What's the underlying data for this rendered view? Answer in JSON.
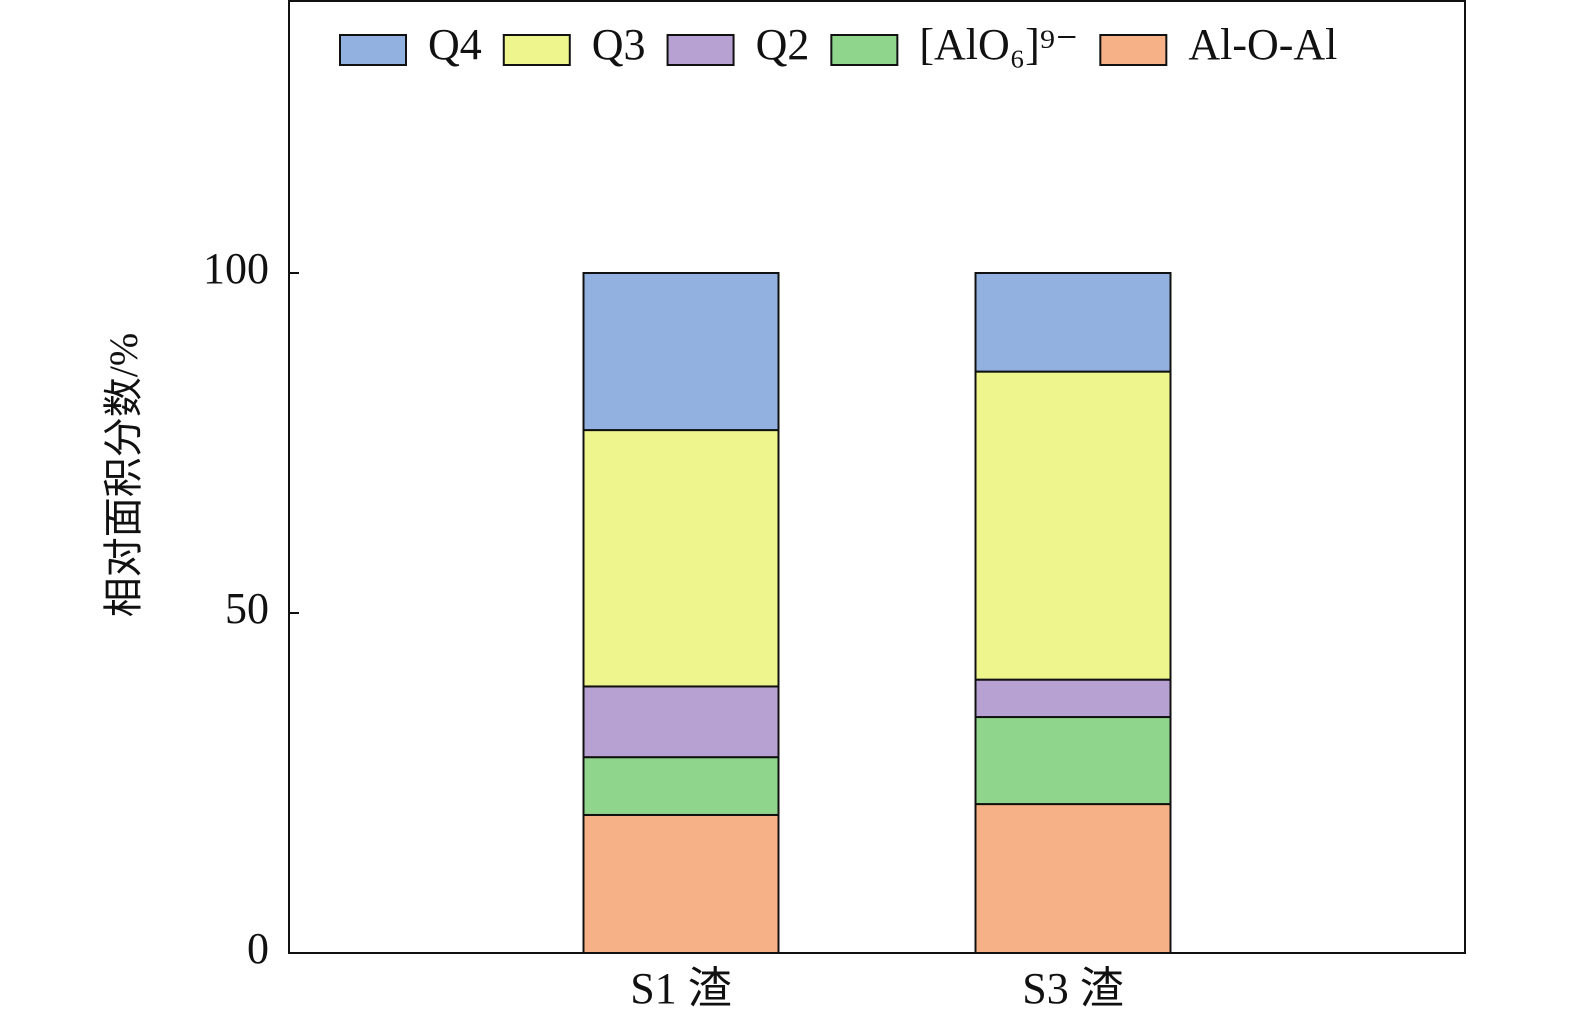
{
  "chart_data": {
    "type": "stacked_bar",
    "y_label": "相对面积分数/%",
    "categories": [
      "S1 渣",
      "S3 渣"
    ],
    "series": [
      {
        "name": "Q4",
        "color": "#92b0e0",
        "values": [
          23.1,
          14.5
        ]
      },
      {
        "name": "Q3",
        "color": "#eef58c",
        "values": [
          37.7,
          45.3
        ]
      },
      {
        "name": "Q2",
        "color": "#b7a1d2",
        "values": [
          10.4,
          5.5
        ]
      },
      {
        "name": "[AlO₆]⁹⁻",
        "color": "#8fd68c",
        "values": [
          8.5,
          12.8
        ]
      },
      {
        "name": "Al-O-Al",
        "color": "#f6b286",
        "values": [
          20.3,
          21.9
        ]
      }
    ],
    "ylim": [
      0,
      140
    ],
    "yticks": [
      0,
      50,
      100
    ],
    "grid": false,
    "legend": "top"
  }
}
